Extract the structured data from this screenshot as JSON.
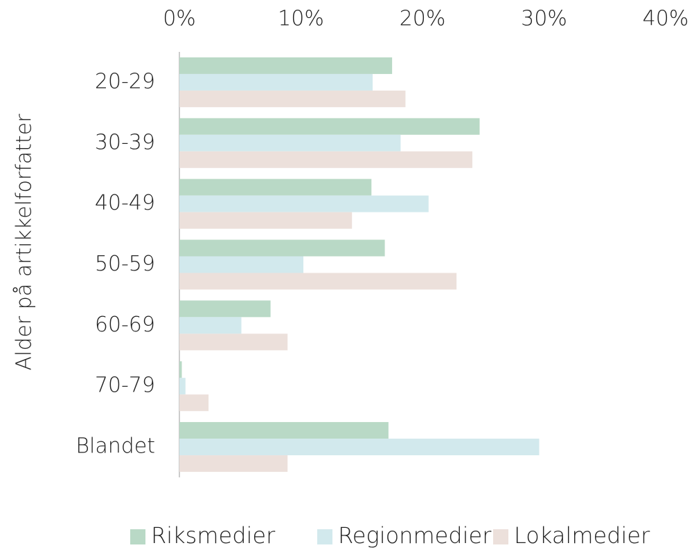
{
  "chart_data": {
    "type": "hbar",
    "y_axis_label": "Alder på artikkelforfatter",
    "categories": [
      "20-29",
      "30-39",
      "40-49",
      "50-59",
      "60-69",
      "70-79",
      "Blandet"
    ],
    "series": [
      {
        "name": "Riksmedier",
        "color": "#b9d9c6",
        "values": [
          17.5,
          24.7,
          15.8,
          16.9,
          7.5,
          0.2,
          17.2
        ]
      },
      {
        "name": "Regionmedier",
        "color": "#d2e9ed",
        "values": [
          15.9,
          18.2,
          20.5,
          10.2,
          5.1,
          0.5,
          29.6
        ]
      },
      {
        "name": "Lokalmedier",
        "color": "#ece0db",
        "values": [
          18.6,
          24.1,
          14.2,
          22.8,
          8.9,
          2.4,
          8.9
        ]
      }
    ],
    "xlim": [
      0,
      40
    ],
    "xticks": [
      {
        "value": 0,
        "label": "0%"
      },
      {
        "value": 10,
        "label": "10%"
      },
      {
        "value": 20,
        "label": "20%"
      },
      {
        "value": 30,
        "label": "30%"
      },
      {
        "value": 40,
        "label": "40%"
      }
    ],
    "grid": false,
    "legend": "bottom"
  }
}
